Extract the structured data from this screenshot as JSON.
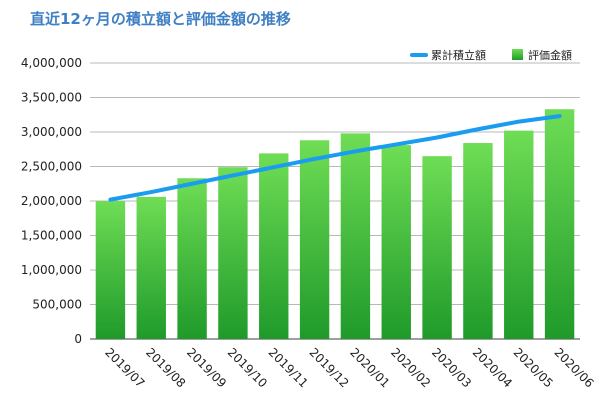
{
  "chart_data": {
    "type": "bar",
    "title": "直近12ヶ月の積立額と評価金額の推移",
    "xlabel": "",
    "ylabel": "",
    "ylim": [
      0,
      4000000
    ],
    "yticks": [
      0,
      500000,
      1000000,
      1500000,
      2000000,
      2500000,
      3000000,
      3500000,
      4000000
    ],
    "ytick_labels": [
      "0",
      "500,000",
      "1,000,000",
      "1,500,000",
      "2,000,000",
      "2,500,000",
      "3,000,000",
      "3,500,000",
      "4,000,000"
    ],
    "categories": [
      "2019/07",
      "2019/08",
      "2019/09",
      "2019/10",
      "2019/11",
      "2019/12",
      "2020/01",
      "2020/02",
      "2020/03",
      "2020/04",
      "2020/05",
      "2020/06"
    ],
    "series": [
      {
        "name": "累計積立額",
        "kind": "line",
        "color": "#1a9cf0",
        "values": [
          2020000,
          2130000,
          2250000,
          2370000,
          2490000,
          2610000,
          2720000,
          2820000,
          2920000,
          3040000,
          3150000,
          3230000
        ]
      },
      {
        "name": "評価金額",
        "kind": "bar",
        "color": "#3cc43c",
        "values": [
          2000000,
          2060000,
          2330000,
          2490000,
          2690000,
          2880000,
          2980000,
          2810000,
          2650000,
          2840000,
          3020000,
          3330000
        ]
      }
    ],
    "legend": "top-right",
    "grid": true
  }
}
